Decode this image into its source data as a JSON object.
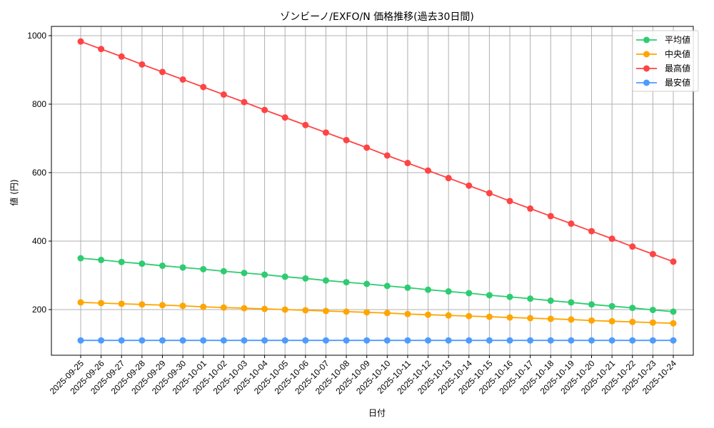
{
  "chart_data": {
    "type": "line",
    "title": "ゾンビーノ/EXFO/N 価格推移(過去30日間)",
    "xlabel": "日付",
    "ylabel": "値 (円)",
    "ylim": [
      69,
      1027
    ],
    "yticks": [
      200,
      400,
      600,
      800,
      1000
    ],
    "grid": true,
    "legend_position": "upper right",
    "categories": [
      "2025-09-25",
      "2025-09-26",
      "2025-09-27",
      "2025-09-28",
      "2025-09-29",
      "2025-09-30",
      "2025-10-01",
      "2025-10-02",
      "2025-10-03",
      "2025-10-04",
      "2025-10-05",
      "2025-10-06",
      "2025-10-07",
      "2025-10-08",
      "2025-10-09",
      "2025-10-10",
      "2025-10-11",
      "2025-10-12",
      "2025-10-13",
      "2025-10-14",
      "2025-10-15",
      "2025-10-16",
      "2025-10-17",
      "2025-10-18",
      "2025-10-19",
      "2025-10-20",
      "2025-10-21",
      "2025-10-22",
      "2025-10-23",
      "2025-10-24"
    ],
    "series": [
      {
        "name": "平均値",
        "color": "#2ecc71",
        "values": [
          350,
          345,
          339,
          334,
          328,
          323,
          318,
          312,
          307,
          302,
          296,
          291,
          285,
          280,
          275,
          269,
          264,
          258,
          253,
          248,
          242,
          237,
          232,
          226,
          221,
          215,
          210,
          205,
          199,
          194
        ]
      },
      {
        "name": "中央値",
        "color": "#ffa500",
        "values": [
          221,
          219,
          217,
          215,
          213,
          211,
          208,
          206,
          204,
          202,
          200,
          198,
          196,
          194,
          192,
          190,
          187,
          185,
          183,
          181,
          179,
          177,
          175,
          173,
          171,
          168,
          166,
          164,
          162,
          160
        ]
      },
      {
        "name": "最高値",
        "color": "#ff4444",
        "values": [
          983,
          961,
          939,
          916,
          894,
          872,
          850,
          828,
          806,
          783,
          761,
          739,
          717,
          695,
          673,
          650,
          628,
          606,
          584,
          562,
          540,
          517,
          495,
          473,
          451,
          429,
          407,
          384,
          362,
          340
        ]
      },
      {
        "name": "最安値",
        "color": "#4d9bff",
        "values": [
          110,
          110,
          110,
          110,
          110,
          110,
          110,
          110,
          110,
          110,
          110,
          110,
          110,
          110,
          110,
          110,
          110,
          110,
          110,
          110,
          110,
          110,
          110,
          110,
          110,
          110,
          110,
          110,
          110,
          110
        ]
      }
    ]
  }
}
